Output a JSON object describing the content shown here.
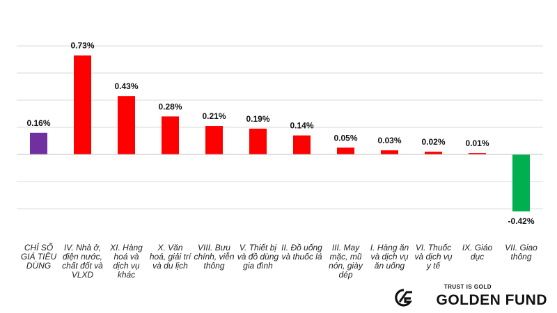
{
  "chart_data": {
    "type": "bar",
    "categories": [
      "CHỈ SỐ GIÁ TIÊU DÙNG",
      "IV. Nhà ở, điện nước, chất đốt và VLXD",
      "XI. Hàng hoá và dịch vụ khác",
      "X. Văn hoá, giải trí và du lịch",
      "VIII. Bưu chính, viễn thông",
      "V. Thiết bị và đồ dùng gia đình",
      "II. Đồ uống và thuốc lá",
      "III. May mặc, mũ nón, giày dép",
      "I. Hàng ăn và dịch vụ ăn uống",
      "VI. Thuốc và dịch vụ y tế",
      "IX. Giáo dục",
      "VII. Giao thông"
    ],
    "values": [
      0.16,
      0.73,
      0.43,
      0.28,
      0.21,
      0.19,
      0.14,
      0.05,
      0.03,
      0.02,
      0.01,
      -0.42
    ],
    "data_labels": [
      "0.16%",
      "0.73%",
      "0.43%",
      "0.28%",
      "0.21%",
      "0.19%",
      "0.14%",
      "0.05%",
      "0.03%",
      "0.02%",
      "0.01%",
      "-0.42%"
    ],
    "bar_colors": [
      "#7030A0",
      "#FF0000",
      "#FF0000",
      "#FF0000",
      "#FF0000",
      "#FF0000",
      "#FF0000",
      "#FF0000",
      "#FF0000",
      "#FF0000",
      "#FF0000",
      "#00B050"
    ],
    "ylim": [
      -0.45,
      0.8
    ],
    "gridlines": [
      -0.4,
      -0.2,
      0.2,
      0.4,
      0.6,
      0.8
    ],
    "grid": true,
    "title": "",
    "xlabel": "",
    "ylabel": ""
  },
  "brand": {
    "tagline": "TRUST IS GOLD",
    "name": "GOLDEN FUND"
  }
}
